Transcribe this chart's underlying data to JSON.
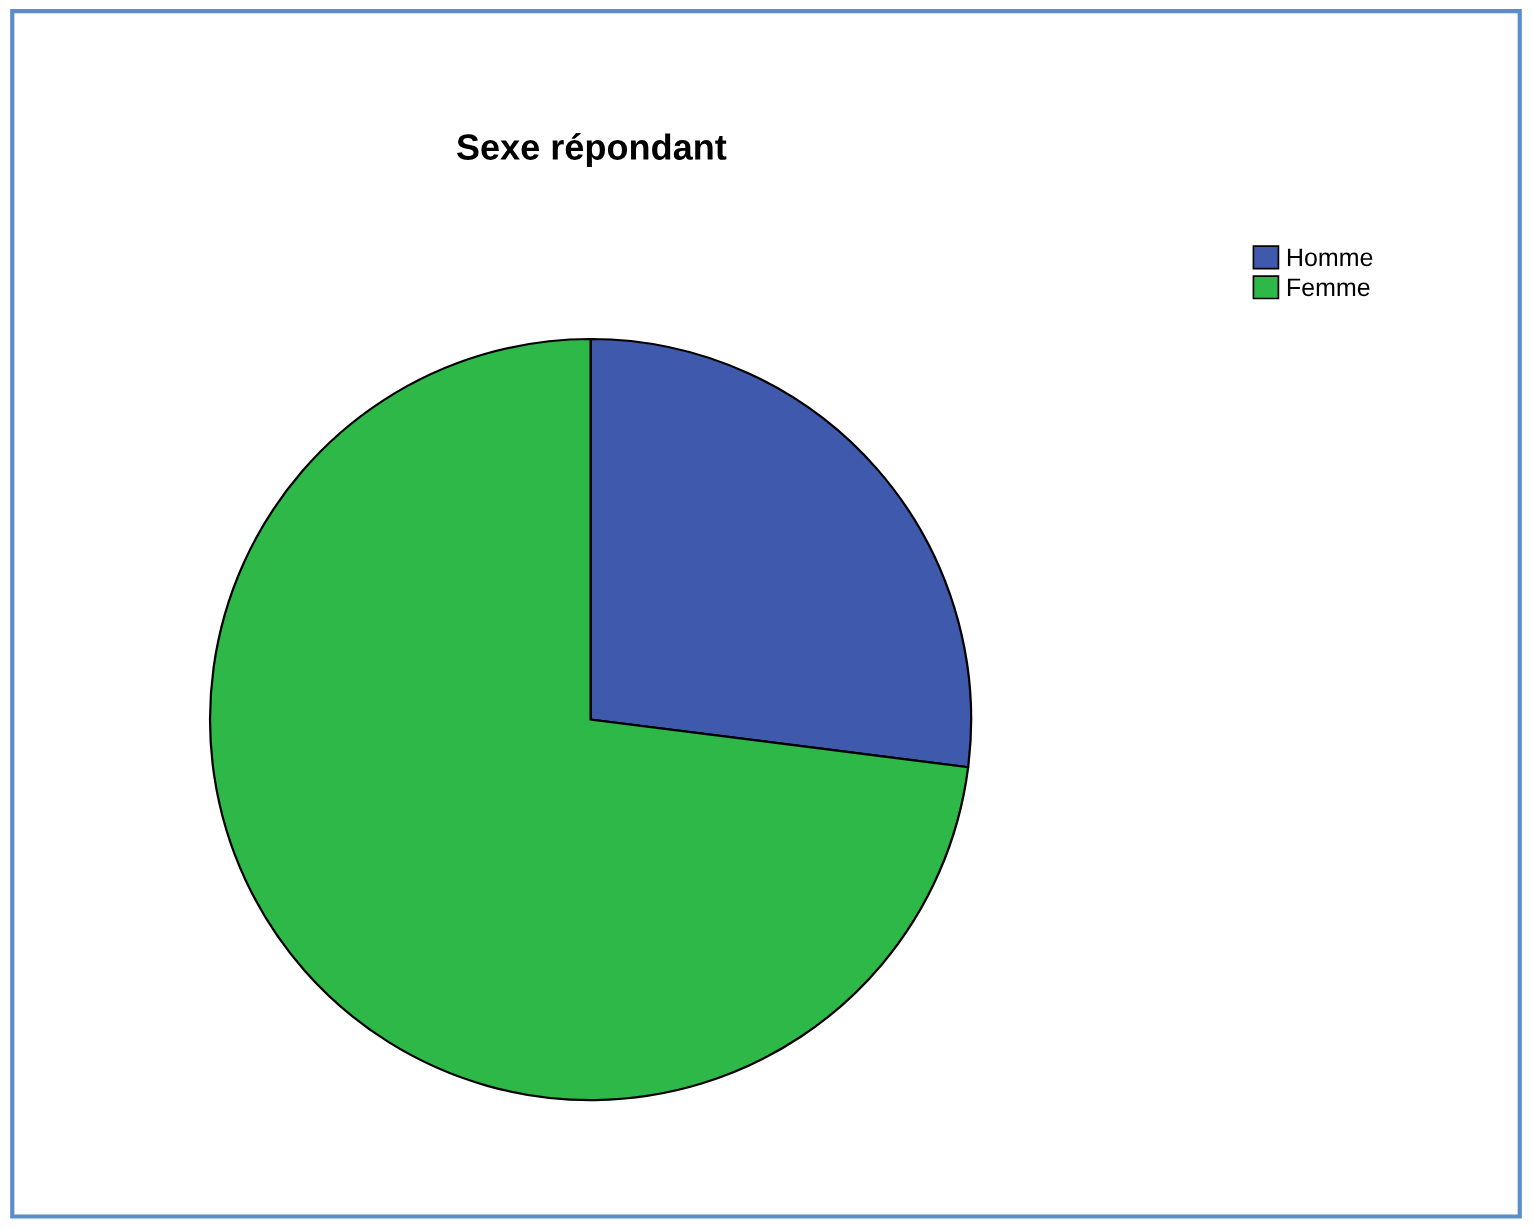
{
  "chart_data": {
    "type": "pie",
    "title": "Sexe répondant",
    "categories": [
      "Homme",
      "Femme"
    ],
    "values": [
      27,
      73
    ],
    "colors": [
      "#3f59ad",
      "#2eb847"
    ],
    "legend": "top right"
  }
}
